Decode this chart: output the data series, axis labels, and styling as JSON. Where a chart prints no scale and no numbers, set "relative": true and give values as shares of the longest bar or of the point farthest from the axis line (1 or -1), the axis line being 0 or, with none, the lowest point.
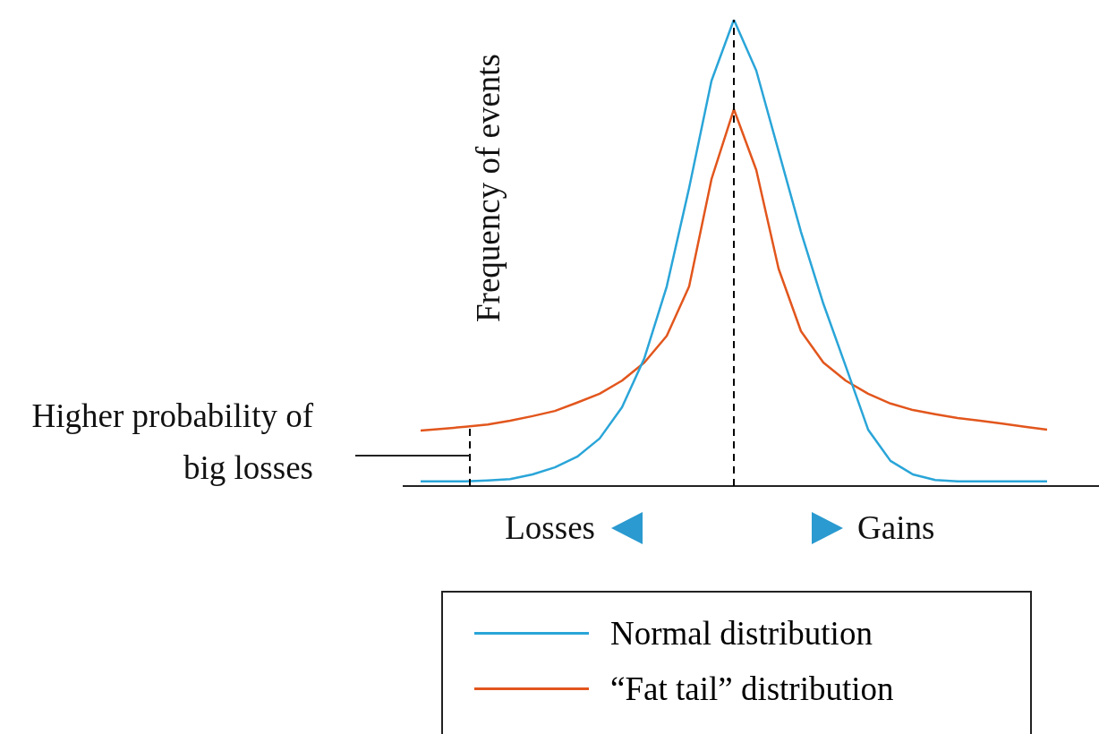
{
  "chart_data": {
    "type": "line",
    "relative": true,
    "ylabel": "Frequency of events",
    "categories": [
      null,
      null,
      null,
      null,
      null,
      null,
      null,
      null,
      null,
      null,
      null,
      null,
      null,
      null,
      null,
      null,
      null,
      null,
      null,
      null,
      null,
      null,
      null,
      null,
      null,
      null,
      null,
      null,
      null
    ],
    "series": [
      {
        "name": "Normal distribution",
        "color": "#2aa5d8",
        "values": [
          0.01,
          0.01,
          0.01,
          0.012,
          0.015,
          0.025,
          0.04,
          0.063,
          0.102,
          0.169,
          0.274,
          0.428,
          0.639,
          0.869,
          1,
          0.891,
          0.718,
          0.545,
          0.391,
          0.257,
          0.121,
          0.054,
          0.025,
          0.013,
          0.01,
          0.01,
          0.01,
          0.01,
          0.01
        ]
      },
      {
        "name": "“Fat tail” distribution",
        "color": "#e2561d",
        "values": [
          0.119,
          0.123,
          0.127,
          0.132,
          0.14,
          0.15,
          0.161,
          0.179,
          0.198,
          0.226,
          0.265,
          0.322,
          0.428,
          0.658,
          0.808,
          0.678,
          0.466,
          0.332,
          0.265,
          0.226,
          0.198,
          0.177,
          0.163,
          0.154,
          0.146,
          0.14,
          0.134,
          0.127,
          0.121
        ]
      }
    ],
    "annotations": [
      "Higher probability of big losses",
      "Losses",
      "Gains"
    ],
    "legend": "bottom",
    "marker": "none",
    "line_style": "solid"
  }
}
